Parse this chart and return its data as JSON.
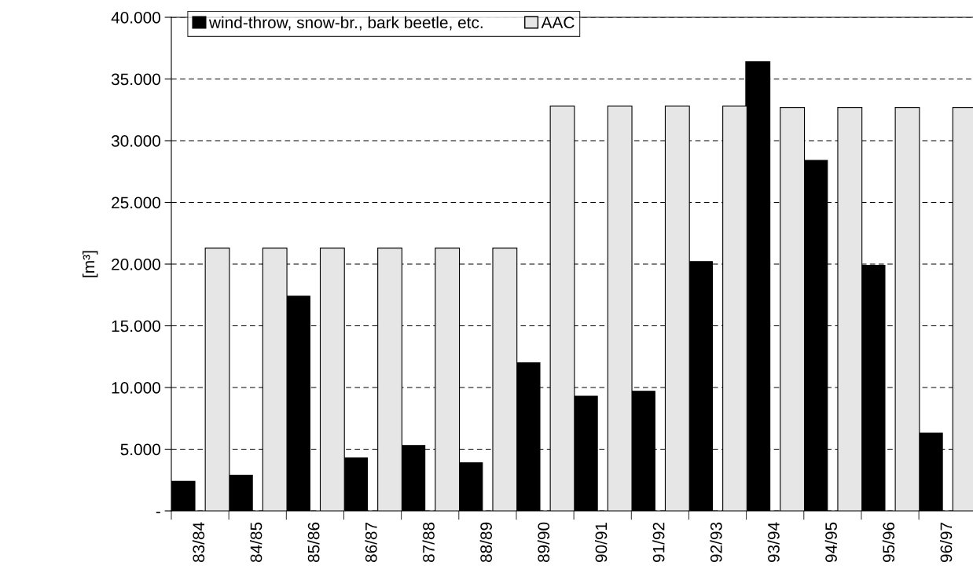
{
  "chart_data": {
    "type": "bar",
    "ylabel": "[m³]",
    "categories": [
      "83/84",
      "84/85",
      "85/86",
      "86/87",
      "87/88",
      "88/89",
      "89/90",
      "90/91",
      "91/92",
      "92/93",
      "93/94",
      "94/95",
      "95/96",
      "96/97"
    ],
    "series": [
      {
        "name": "wind-throw, snow-br., bark beetle, etc.",
        "color": "#000000",
        "values": [
          2400,
          2900,
          17400,
          4300,
          5300,
          3900,
          12000,
          9300,
          9700,
          20200,
          36400,
          28400,
          19900,
          6300
        ]
      },
      {
        "name": "AAC",
        "color": "#e6e6e6",
        "values": [
          21300,
          21300,
          21300,
          21300,
          21300,
          21300,
          32800,
          32800,
          32800,
          32800,
          32700,
          32700,
          32700,
          32700
        ]
      }
    ],
    "ylim": [
      0,
      40000
    ],
    "yticks": [
      {
        "value": 0,
        "label": "-"
      },
      {
        "value": 5000,
        "label": "5.000"
      },
      {
        "value": 10000,
        "label": "10.000"
      },
      {
        "value": 15000,
        "label": "15.000"
      },
      {
        "value": 20000,
        "label": "20.000"
      },
      {
        "value": 25000,
        "label": "25.000"
      },
      {
        "value": 30000,
        "label": "30.000"
      },
      {
        "value": 35000,
        "label": "35.000"
      },
      {
        "value": 40000,
        "label": "40.000"
      }
    ],
    "grid": "y",
    "legend": "top left"
  }
}
